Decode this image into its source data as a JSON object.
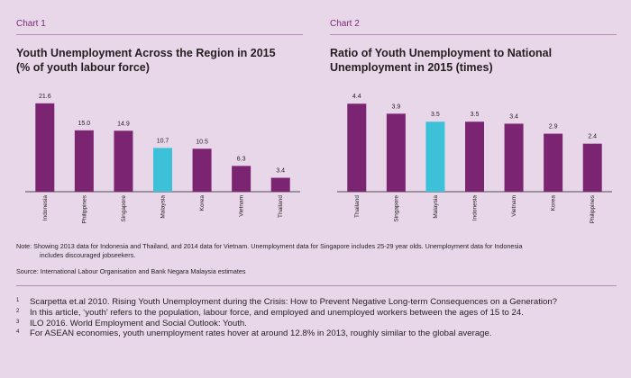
{
  "left": {
    "label": "Chart 1",
    "title_line1": "Youth Unemployment Across the Region in 2015",
    "title_line2": "(% of youth labour force)"
  },
  "right": {
    "label": "Chart 2",
    "title_line1": "Ratio of Youth Unemployment to National",
    "title_line2": "Unemployment in 2015 (times)"
  },
  "chart_data": [
    {
      "type": "bar",
      "title": "Youth Unemployment Across the Region in 2015 (% of youth labour force)",
      "categories": [
        "Indonesia",
        "Philippines",
        "Singapore",
        "Malaysia",
        "Korea",
        "Vietnam",
        "Thailand"
      ],
      "values": [
        21.6,
        15.0,
        14.9,
        10.7,
        10.5,
        6.3,
        3.4
      ],
      "value_labels": [
        "21.6",
        "15.0",
        "14.9",
        "10.7",
        "10.5",
        "6.3",
        "3.4"
      ],
      "highlight": "Malaysia",
      "colors": {
        "bar": "#7b2572",
        "highlight": "#3dc1d8",
        "axis": "#231f20"
      },
      "ylim": [
        0,
        22
      ]
    },
    {
      "type": "bar",
      "title": "Ratio of Youth Unemployment to National Unemployment in 2015 (times)",
      "categories": [
        "Thailand",
        "Singapore",
        "Malaysia",
        "Indonesia",
        "Vietnam",
        "Korea",
        "Philippines"
      ],
      "values": [
        4.4,
        3.9,
        3.5,
        3.5,
        3.4,
        2.9,
        2.4
      ],
      "value_labels": [
        "4.4",
        "3.9",
        "3.5",
        "3.5",
        "3.4",
        "2.9",
        "2.4"
      ],
      "highlight": "Malaysia",
      "colors": {
        "bar": "#7b2572",
        "highlight": "#3dc1d8",
        "axis": "#231f20"
      },
      "ylim": [
        0,
        4.5
      ]
    }
  ],
  "notes": {
    "note_line1": "Note:  Showing 2013 data for Indonesia and Thailand, and 2014 data for Vietnam. Unemployment data for Singapore includes 25-29 year olds. Unemployment data for Indonesia",
    "note_line2": "includes discouraged jobseekers.",
    "source": "Source: International Labour Organisation and Bank Negara Malaysia estimates"
  },
  "footnotes": [
    {
      "num": "1",
      "text": "Scarpetta et.al 2010. Rising Youth Unemployment during the Crisis: How to Prevent Negative Long-term Consequences on a Generation?"
    },
    {
      "num": "2",
      "text": "In this article, ‘youth’ refers to the population, labour force, and employed and unemployed workers between the ages of 15 to 24."
    },
    {
      "num": "3",
      "text": "ILO 2016. World Employment and Social Outlook: Youth."
    },
    {
      "num": "4",
      "text": "For ASEAN economies, youth unemployment rates hover at around 12.8% in 2013, roughly similar to the global average."
    }
  ]
}
